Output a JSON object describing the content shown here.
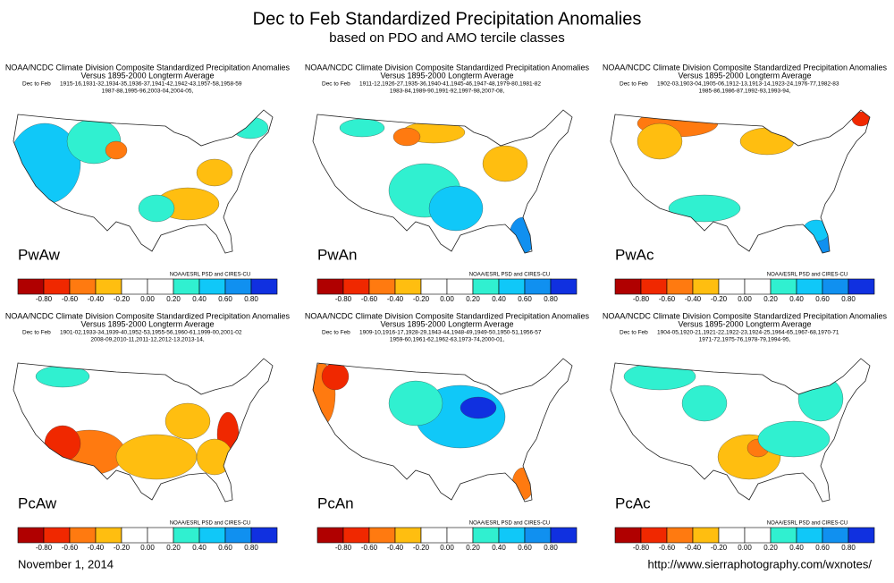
{
  "title": "Dec to Feb Standardized Precipitation Anomalies",
  "subtitle": "based on PDO and AMO tercile classes",
  "panels": [
    {
      "header": "NOAA/NCDC Climate Division Composite Standardized Precipitation Anomalies",
      "versus": "Versus 1895-2000 Longterm Average",
      "season": "Dec to Feb",
      "years": [
        "1915-16,1931-32,1934-35,1936-37,1941-42,1942-43,1957-58,1958-59",
        "1987-88,1995-96,2003-04,2004-05,"
      ],
      "label": "PwAw",
      "credit": "NOAA/ESRL PSD and CIRES-CU",
      "colorbar": [
        "-0.80",
        "-0.60",
        "-0.40",
        "-0.20",
        "0.00",
        "0.20",
        "0.40",
        "0.60",
        "0.80"
      ]
    },
    {
      "header": "NOAA/NCDC Climate Division Composite Standardized Precipitation Anomalies",
      "versus": "Versus 1895-2000 Longterm Average",
      "season": "Dec to Feb",
      "years": [
        "1911-12,1926-27,1935-36,1940-41,1945-46,1947-48,1979-80,1981-82",
        "1983-84,1989-90,1991-92,1997-98,2007-08,"
      ],
      "label": "PwAn",
      "credit": "NOAA/ESRL PSD and CIRES-CU",
      "colorbar": [
        "-0.80",
        "-0.60",
        "-0.40",
        "-0.20",
        "0.00",
        "0.20",
        "0.40",
        "0.60",
        "0.80"
      ]
    },
    {
      "header": "NOAA/NCDC Climate Division Composite Standardized Precipitation Anomalies",
      "versus": "Versus 1895-2000 Longterm Average",
      "season": "Dec to Feb",
      "years": [
        "1902-03,1903-04,1905-06,1912-13,1913-14,1923-24,1976-77,1982-83",
        "1985-86,1986-87,1992-93,1993-94,"
      ],
      "label": "PwAc",
      "credit": "NOAA/ESRL PSD and CIRES-CU",
      "colorbar": [
        "-0.80",
        "-0.60",
        "-0.40",
        "-0.20",
        "0.00",
        "0.20",
        "0.40",
        "0.60",
        "0.80"
      ]
    },
    {
      "header": "NOAA/NCDC Climate Division Composite Standardized Precipitation Anomalies",
      "versus": "Versus 1895-2000 Longterm Average",
      "season": "Dec to Feb",
      "years": [
        "1901-02,1933-34,1939-40,1952-53,1955-56,1960-61,1999-00,2001-02",
        "2008-09,2010-11,2011-12,2012-13,2013-14,"
      ],
      "label": "PcAw",
      "credit": "NOAA/ESRL PSD and CIRES-CU",
      "colorbar": [
        "-0.80",
        "-0.60",
        "-0.40",
        "-0.20",
        "0.00",
        "0.20",
        "0.40",
        "0.60",
        "0.80"
      ]
    },
    {
      "header": "NOAA/NCDC Climate Division Composite Standardized Precipitation Anomalies",
      "versus": "Versus 1895-2000 Longterm Average",
      "season": "Dec to Feb",
      "years": [
        "1909-10,1916-17,1928-29,1943-44,1948-49,1949-50,1950-51,1956-57",
        "1959-60,1961-62,1962-63,1973-74,2000-01,"
      ],
      "label": "PcAn",
      "credit": "NOAA/ESRL PSD and CIRES-CU",
      "colorbar": [
        "-0.80",
        "-0.60",
        "-0.40",
        "-0.20",
        "0.00",
        "0.20",
        "0.40",
        "0.60",
        "0.80"
      ]
    },
    {
      "header": "NOAA/NCDC Climate Division Composite Standardized Precipitation Anomalies",
      "versus": "Versus 1895-2000 Longterm Average",
      "season": "Dec to Feb",
      "years": [
        "1904-05,1920-21,1921-22,1922-23,1924-25,1964-65,1967-68,1970-71",
        "1971-72,1975-76,1978-79,1994-95,"
      ],
      "label": "PcAc",
      "credit": "NOAA/ESRL PSD and CIRES-CU",
      "colorbar": [
        "-0.80",
        "-0.60",
        "-0.40",
        "-0.20",
        "0.00",
        "0.20",
        "0.40",
        "0.60",
        "0.80"
      ]
    }
  ],
  "date": "November 1, 2014",
  "url": "http://www.sierraphotography.com/wxnotes/"
}
